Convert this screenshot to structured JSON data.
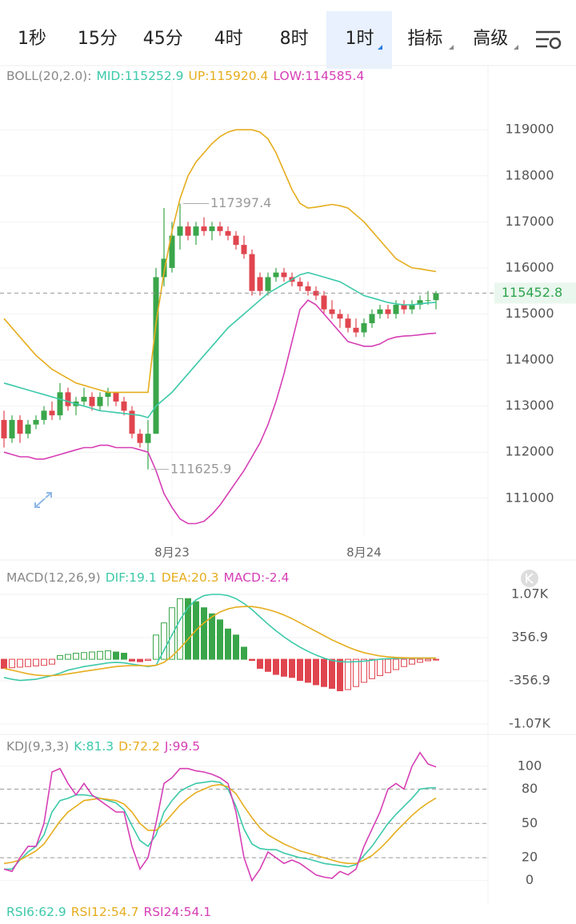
{
  "tabs": [
    "1秒",
    "15分",
    "45分",
    "4时",
    "8时",
    "1时",
    "指标",
    "高级"
  ],
  "active_tab": 5,
  "chart_data": [
    {
      "type": "candlestick",
      "indicator": "BOLL(20,2.0):",
      "categories": [
        null,
        null,
        null,
        null,
        null,
        null,
        null,
        null,
        null,
        null,
        null,
        null,
        null,
        null,
        null,
        null,
        null,
        null,
        null,
        null,
        null,
        "8月23",
        null,
        null,
        null,
        null,
        null,
        null,
        null,
        null,
        null,
        null,
        null,
        null,
        null,
        null,
        null,
        null,
        null,
        null,
        null,
        null,
        null,
        null,
        null,
        "8月24",
        null,
        null,
        null,
        null,
        null,
        null,
        null,
        null,
        null
      ],
      "open": [
        112700,
        112300,
        112700,
        112400,
        112600,
        112700,
        112900,
        112800,
        113300,
        113000,
        113100,
        113200,
        113000,
        113200,
        113300,
        113100,
        112900,
        112400,
        112200,
        112400,
        115800,
        116000,
        116700,
        116900,
        116700,
        116900,
        116800,
        116900,
        116800,
        116700,
        116500,
        116300,
        115800,
        115500,
        115800,
        115900,
        115800,
        115700,
        115600,
        115500,
        115400,
        115100,
        115000,
        114900,
        114700,
        114600,
        114800,
        115000,
        115100,
        115000,
        115200,
        115100,
        115200,
        115300,
        115300
      ],
      "high": [
        112900,
        112800,
        112800,
        112700,
        112800,
        113000,
        113100,
        113500,
        113400,
        113200,
        113400,
        113300,
        113300,
        113400,
        113300,
        113200,
        113000,
        112500,
        112700,
        116000,
        117300,
        117000,
        117397.4,
        117000,
        117000,
        117100,
        117000,
        117000,
        116900,
        116800,
        116700,
        116400,
        115900,
        115900,
        116000,
        116000,
        115900,
        115800,
        115700,
        115600,
        115500,
        115300,
        115100,
        115000,
        114900,
        114900,
        115100,
        115200,
        115200,
        115300,
        115300,
        115300,
        115400,
        115500,
        115500
      ],
      "low": [
        112100,
        112200,
        112200,
        112300,
        112500,
        112600,
        112700,
        112700,
        112900,
        112800,
        113000,
        112900,
        112900,
        113000,
        113000,
        112800,
        112300,
        112100,
        111625.9,
        112400,
        115600,
        115900,
        116400,
        116600,
        116500,
        116700,
        116600,
        116700,
        116600,
        116400,
        116200,
        115400,
        115400,
        115400,
        115700,
        115700,
        115600,
        115500,
        115400,
        115300,
        115000,
        114900,
        114700,
        114600,
        114500,
        114500,
        114700,
        114900,
        114900,
        114900,
        115000,
        115000,
        115100,
        115200,
        115100
      ],
      "close": [
        112300,
        112700,
        112400,
        112600,
        112700,
        112900,
        112800,
        113300,
        113000,
        113100,
        113200,
        113000,
        113200,
        113300,
        113100,
        112900,
        112400,
        112200,
        112400,
        115800,
        116200,
        116700,
        116900,
        116700,
        116900,
        116800,
        116900,
        116800,
        116700,
        116500,
        116300,
        115500,
        115500,
        115800,
        115900,
        115800,
        115700,
        115600,
        115500,
        115400,
        115100,
        115000,
        114900,
        114700,
        114600,
        114800,
        115000,
        115100,
        115000,
        115200,
        115100,
        115200,
        115300,
        115300,
        115452.8
      ],
      "up_color": "#3aa64a",
      "down_color": "#e0454f",
      "series": [
        {
          "name": "MID:",
          "color": "#3cc9a9",
          "values": [
            113500,
            113450,
            113400,
            113350,
            113300,
            113250,
            113200,
            113150,
            113100,
            113050,
            113000,
            112950,
            112900,
            112880,
            112860,
            112840,
            112820,
            112800,
            112750,
            113000,
            113150,
            113300,
            113500,
            113700,
            113900,
            114100,
            114300,
            114500,
            114700,
            114850,
            115000,
            115150,
            115300,
            115450,
            115550,
            115650,
            115750,
            115850,
            115900,
            115850,
            115800,
            115750,
            115700,
            115600,
            115500,
            115400,
            115350,
            115300,
            115250,
            115220,
            115200,
            115200,
            115220,
            115240,
            115252.9
          ]
        },
        {
          "name": "UP:",
          "color": "#e6ad1e",
          "values": [
            114900,
            114700,
            114500,
            114300,
            114100,
            113950,
            113800,
            113700,
            113600,
            113500,
            113450,
            113400,
            113350,
            113300,
            113300,
            113300,
            113300,
            113300,
            113300,
            114800,
            115900,
            116800,
            117500,
            118000,
            118300,
            118500,
            118700,
            118850,
            118950,
            119000,
            119000,
            119000,
            118950,
            118800,
            118500,
            118100,
            117700,
            117400,
            117300,
            117320,
            117350,
            117380,
            117350,
            117300,
            117150,
            117000,
            116800,
            116600,
            116400,
            116200,
            116100,
            116000,
            115980,
            115950,
            115920.4
          ]
        },
        {
          "name": "LOW:",
          "color": "#d63fb5",
          "values": [
            112000,
            111950,
            111900,
            111900,
            111850,
            111850,
            111900,
            111950,
            112000,
            112050,
            112100,
            112100,
            112150,
            112150,
            112100,
            112100,
            112100,
            112050,
            112000,
            111600,
            111100,
            110800,
            110550,
            110450,
            110450,
            110500,
            110650,
            110850,
            111100,
            111350,
            111600,
            111900,
            112200,
            112600,
            113100,
            113700,
            114400,
            115100,
            115300,
            115200,
            115000,
            114800,
            114600,
            114400,
            114350,
            114300,
            114300,
            114350,
            114450,
            114500,
            114520,
            114530,
            114550,
            114570,
            114585.4
          ]
        }
      ],
      "ylim": [
        110180,
        120080
      ],
      "yticks": [
        111000,
        112000,
        113000,
        114000,
        115000,
        116000,
        117000,
        118000,
        119000
      ],
      "grid": true
    },
    {
      "type": "macd",
      "indicator": "MACD(12,26,9)",
      "series": [
        {
          "name": "DIF:",
          "color": "#3cc9a9",
          "values": [
            -300,
            -330,
            -350,
            -340,
            -330,
            -300,
            -270,
            -230,
            -180,
            -150,
            -120,
            -100,
            -80,
            -60,
            -50,
            -60,
            -80,
            -100,
            -120,
            -100,
            150,
            400,
            650,
            850,
            980,
            1050,
            1070,
            1070,
            1050,
            1000,
            920,
            820,
            700,
            580,
            470,
            370,
            280,
            200,
            130,
            70,
            20,
            -20,
            -40,
            -45,
            -40,
            -30,
            -15,
            0,
            10,
            15,
            18,
            19,
            20,
            20,
            19.1
          ]
        },
        {
          "name": "DEA:",
          "color": "#e6ad1e",
          "values": [
            -150,
            -180,
            -210,
            -240,
            -260,
            -270,
            -270,
            -260,
            -240,
            -220,
            -200,
            -180,
            -160,
            -140,
            -120,
            -110,
            -105,
            -105,
            -110,
            -100,
            -50,
            50,
            180,
            330,
            480,
            600,
            700,
            780,
            830,
            860,
            870,
            870,
            850,
            820,
            780,
            730,
            670,
            600,
            530,
            460,
            390,
            320,
            260,
            200,
            150,
            110,
            80,
            55,
            40,
            30,
            25,
            22,
            21,
            20.5,
            20.3
          ]
        },
        {
          "name": "MACD:",
          "type": "bar",
          "color": "#d63fb5",
          "up_color": "#3aa64a",
          "down_color": "#e0454f",
          "values": [
            -150,
            -140,
            -130,
            -120,
            -110,
            -100,
            -80,
            60,
            80,
            100,
            110,
            120,
            130,
            140,
            120,
            100,
            -30,
            -40,
            -20,
            400,
            600,
            850,
            1000,
            1000,
            950,
            850,
            750,
            650,
            500,
            400,
            200,
            -20,
            -150,
            -200,
            -250,
            -280,
            -300,
            -350,
            -380,
            -420,
            -450,
            -480,
            -520,
            -500,
            -450,
            -380,
            -320,
            -270,
            -220,
            -170,
            -120,
            -80,
            -50,
            -25,
            -2.4
          ]
        }
      ],
      "ylim": [
        -1200,
        1440
      ],
      "yticks": [
        {
          "value": 1070,
          "label": "1.07K"
        },
        356.9,
        -356.9,
        {
          "value": -1070,
          "label": "-1.07K"
        }
      ],
      "grid": true
    },
    {
      "type": "line",
      "indicator": "KDJ(9,3,3)",
      "series": [
        {
          "name": "K:",
          "color": "#3cc9a9",
          "values": [
            10,
            10,
            18,
            25,
            30,
            40,
            60,
            70,
            72,
            75,
            75,
            74,
            72,
            70,
            68,
            62,
            48,
            35,
            30,
            40,
            60,
            70,
            78,
            82,
            85,
            86,
            87,
            86,
            80,
            65,
            45,
            32,
            28,
            27,
            27,
            24,
            22,
            20,
            19,
            17,
            15,
            14,
            13,
            12,
            14,
            22,
            30,
            40,
            50,
            58,
            65,
            72,
            80,
            81,
            81.3
          ]
        },
        {
          "name": "D:",
          "color": "#e6ad1e",
          "values": [
            15,
            16,
            18,
            22,
            26,
            32,
            42,
            52,
            60,
            65,
            70,
            71,
            72,
            71,
            70,
            67,
            60,
            50,
            44,
            44,
            50,
            58,
            66,
            72,
            77,
            80,
            83,
            84,
            82,
            76,
            65,
            55,
            46,
            40,
            36,
            32,
            29,
            26,
            24,
            22,
            20,
            18,
            16,
            15,
            15,
            18,
            22,
            28,
            35,
            43,
            50,
            57,
            63,
            68,
            72.2
          ]
        },
        {
          "name": "J:",
          "color": "#d63fb5",
          "values": [
            10,
            8,
            20,
            30,
            30,
            50,
            95,
            98,
            85,
            75,
            85,
            75,
            70,
            65,
            60,
            60,
            30,
            10,
            20,
            50,
            85,
            90,
            98,
            98,
            96,
            95,
            93,
            90,
            85,
            60,
            20,
            0,
            10,
            25,
            20,
            15,
            18,
            15,
            10,
            5,
            3,
            2,
            8,
            5,
            10,
            30,
            45,
            60,
            80,
            85,
            80,
            100,
            112,
            102,
            99.5
          ]
        }
      ],
      "ylim": [
        -17,
        123
      ],
      "yticks": [
        100,
        80,
        50,
        20,
        0
      ],
      "reference_lines": [
        80,
        50,
        20
      ],
      "grid": true
    },
    {
      "type": "text",
      "items": [
        {
          "name": "RSI6:",
          "value": 62.9,
          "color": "#3cc9a9"
        },
        {
          "name": "RSI12:",
          "value": 54.7,
          "color": "#e6ad1e"
        },
        {
          "name": "RSI24:",
          "value": 54.1,
          "color": "#d63fb5"
        }
      ]
    }
  ]
}
